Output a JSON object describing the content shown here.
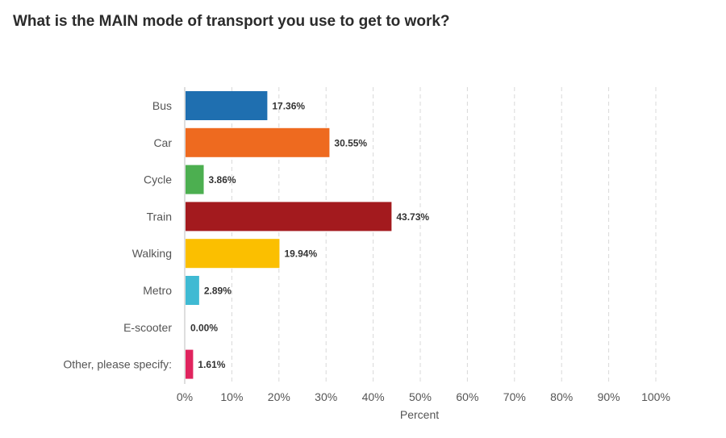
{
  "chart_data": {
    "type": "bar",
    "orientation": "horizontal",
    "title": "What is the MAIN mode of transport you use to get to work?",
    "xlabel": "Percent",
    "ylabel": "",
    "xlim": [
      0,
      100
    ],
    "grid": true,
    "categories": [
      "Bus",
      "Car",
      "Cycle",
      "Train",
      "Walking",
      "Metro",
      "E-scooter",
      "Other, please specify:"
    ],
    "values": [
      17.36,
      30.55,
      3.86,
      43.73,
      19.94,
      2.89,
      0.0,
      1.61
    ],
    "value_labels": [
      "17.36%",
      "30.55%",
      "3.86%",
      "43.73%",
      "19.94%",
      "2.89%",
      "0.00%",
      "1.61%"
    ],
    "colors": [
      "#1f6fb0",
      "#ee6a1f",
      "#4caf50",
      "#a31a1e",
      "#fbbf00",
      "#3fbad3",
      "#8e44ad",
      "#e0245e"
    ],
    "ticks": [
      0,
      10,
      20,
      30,
      40,
      50,
      60,
      70,
      80,
      90,
      100
    ],
    "tick_labels": [
      "0%",
      "10%",
      "20%",
      "30%",
      "40%",
      "50%",
      "60%",
      "70%",
      "80%",
      "90%",
      "100%"
    ]
  }
}
